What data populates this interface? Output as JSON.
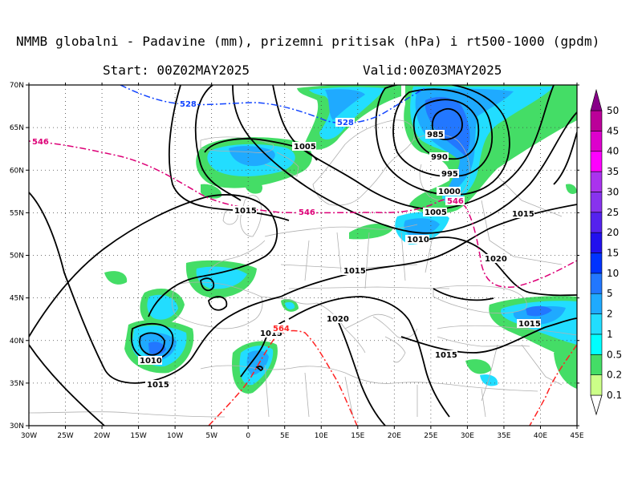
{
  "header": {
    "title": "NMMB globalni - Padavine (mm), prizemni pritisak (hPa) i rt500-1000 (gpdm)",
    "start": "Start: 00Z02MAY2025",
    "valid": "Valid:00Z03MAY2025"
  },
  "map": {
    "lon_range": [
      -30,
      45
    ],
    "lat_range": [
      30,
      70
    ],
    "lon_labels": [
      "30W",
      "25W",
      "20W",
      "15W",
      "10W",
      "5W",
      "0",
      "5E",
      "10E",
      "15E",
      "20E",
      "25E",
      "30E",
      "35E",
      "40E",
      "45E"
    ],
    "lat_labels": [
      "30N",
      "35N",
      "40N",
      "45N",
      "50N",
      "55N",
      "60N",
      "65N",
      "70N"
    ],
    "grid": "dotted"
  },
  "pressure_labels": [
    "985",
    "990",
    "995",
    "1000",
    "1005",
    "1005",
    "1010",
    "1010",
    "1015",
    "1015",
    "1015",
    "1015",
    "1015",
    "1015",
    "1015",
    "1020",
    "1020"
  ],
  "thickness_labels": {
    "blue_528a": "528",
    "blue_528b": "528",
    "pink_546a": "546",
    "pink_546b": "546",
    "pink_546c": "546",
    "red_564": "564"
  },
  "legend": {
    "levels": [
      "0.1",
      "0.2",
      "0.5",
      "1",
      "2",
      "5",
      "10",
      "15",
      "20",
      "25",
      "30",
      "35",
      "40",
      "45",
      "50"
    ],
    "colors": [
      "#ccff88",
      "#44dd66",
      "#00ffff",
      "#22ddff",
      "#1faaff",
      "#2277ff",
      "#0033ff",
      "#2211ee",
      "#5522ee",
      "#8833ee",
      "#aa33ee",
      "#ff00ff",
      "#dd00cc",
      "#bb0099",
      "#880088"
    ]
  },
  "colors": {
    "isobar": "#000000",
    "thickness_528": "#1144ff",
    "thickness_546": "#dd0077",
    "thickness_564": "#ff2222",
    "borders": "#b0b0b0"
  }
}
